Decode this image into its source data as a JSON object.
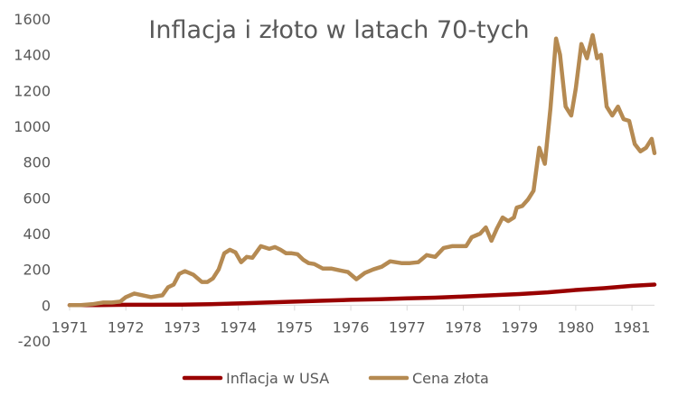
{
  "chart_data": {
    "type": "line",
    "title": "Inflacja i złoto w latach 70-tych",
    "xlabel": "",
    "ylabel": "",
    "xlim": [
      1971,
      1981.4
    ],
    "ylim": [
      -200,
      1600
    ],
    "yticks": [
      -200,
      0,
      200,
      400,
      600,
      800,
      1000,
      1200,
      1400,
      1600
    ],
    "xticks": [
      1971,
      1972,
      1973,
      1974,
      1975,
      1976,
      1977,
      1978,
      1979,
      1980,
      1981
    ],
    "grid": false,
    "legend_position": "bottom",
    "series": [
      {
        "name": "Inflacja w USA",
        "color": "#990000",
        "x": [
          1971,
          1971.5,
          1972,
          1972.5,
          1973,
          1973.5,
          1974,
          1974.5,
          1975,
          1975.5,
          1976,
          1976.5,
          1977,
          1977.5,
          1978,
          1978.5,
          1979,
          1979.5,
          1980,
          1980.5,
          1981,
          1981.4
        ],
        "y": [
          0,
          0,
          2,
          2,
          3,
          5,
          10,
          15,
          20,
          25,
          30,
          33,
          38,
          42,
          48,
          55,
          62,
          72,
          85,
          95,
          108,
          115
        ]
      },
      {
        "name": "Cena złota",
        "color": "#b58a52",
        "x": [
          1971,
          1971.2,
          1971.4,
          1971.6,
          1971.75,
          1971.9,
          1972,
          1972.15,
          1972.3,
          1972.45,
          1972.55,
          1972.65,
          1972.75,
          1972.85,
          1972.95,
          1973.05,
          1973.2,
          1973.35,
          1973.45,
          1973.55,
          1973.65,
          1973.75,
          1973.85,
          1973.95,
          1974.05,
          1974.15,
          1974.25,
          1974.4,
          1974.55,
          1974.65,
          1974.75,
          1974.85,
          1974.95,
          1975.05,
          1975.15,
          1975.25,
          1975.35,
          1975.5,
          1975.65,
          1975.8,
          1975.95,
          1976.1,
          1976.25,
          1976.4,
          1976.55,
          1976.7,
          1976.9,
          1977.05,
          1977.2,
          1977.35,
          1977.5,
          1977.65,
          1977.8,
          1977.95,
          1978.05,
          1978.15,
          1978.3,
          1978.4,
          1978.5,
          1978.6,
          1978.7,
          1978.8,
          1978.9,
          1978.95,
          1979.05,
          1979.15,
          1979.25,
          1979.35,
          1979.45,
          1979.55,
          1979.65,
          1979.72,
          1979.82,
          1979.92,
          1980,
          1980.1,
          1980.2,
          1980.3,
          1980.38,
          1980.45,
          1980.55,
          1980.65,
          1980.75,
          1980.85,
          1980.95,
          1981.05,
          1981.15,
          1981.25,
          1981.35,
          1981.4
        ],
        "y": [
          0,
          0,
          5,
          15,
          15,
          20,
          45,
          65,
          55,
          45,
          50,
          55,
          100,
          115,
          175,
          190,
          170,
          130,
          130,
          150,
          200,
          290,
          310,
          295,
          240,
          270,
          265,
          330,
          315,
          325,
          310,
          290,
          290,
          285,
          255,
          235,
          230,
          205,
          205,
          195,
          185,
          145,
          180,
          200,
          215,
          245,
          235,
          235,
          240,
          280,
          270,
          320,
          330,
          330,
          330,
          380,
          400,
          435,
          360,
          430,
          490,
          470,
          490,
          545,
          555,
          590,
          640,
          880,
          790,
          1100,
          1490,
          1400,
          1110,
          1060,
          1210,
          1460,
          1380,
          1510,
          1380,
          1400,
          1110,
          1060,
          1110,
          1040,
          1030,
          900,
          860,
          880,
          930,
          850
        ]
      }
    ]
  }
}
